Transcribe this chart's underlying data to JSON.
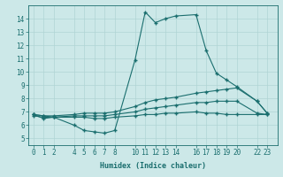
{
  "xlabel": "Humidex (Indice chaleur)",
  "bg_color": "#cce8e8",
  "grid_color": "#b0d4d4",
  "line_color": "#1a6e6e",
  "xtick_positions": [
    0,
    1,
    2,
    4,
    5,
    6,
    7,
    8,
    10,
    11,
    12,
    13,
    14,
    16,
    17,
    18,
    19,
    20,
    22,
    23
  ],
  "xtick_labels": [
    "0",
    "1",
    "2",
    "4",
    "5",
    "6",
    "7",
    "8",
    "10",
    "11",
    "12",
    "13",
    "14",
    "16",
    "17",
    "18",
    "19",
    "20",
    "22",
    "23"
  ],
  "yticks": [
    5,
    6,
    7,
    8,
    9,
    10,
    11,
    12,
    13,
    14
  ],
  "ylim": [
    4.5,
    15.0
  ],
  "xlim": [
    -0.5,
    24.0
  ],
  "line1_x": [
    0,
    1,
    2,
    4,
    5,
    6,
    7,
    8,
    10,
    11,
    12,
    13,
    14,
    16,
    17,
    18,
    19,
    20,
    22,
    23
  ],
  "line1_y": [
    6.8,
    6.5,
    6.6,
    6.0,
    5.6,
    5.5,
    5.4,
    5.6,
    10.9,
    14.5,
    13.7,
    14.0,
    14.2,
    14.3,
    11.6,
    9.9,
    9.4,
    8.9,
    7.8,
    6.9
  ],
  "line2_x": [
    0,
    1,
    2,
    4,
    5,
    6,
    7,
    8,
    10,
    11,
    12,
    13,
    14,
    16,
    17,
    18,
    19,
    20,
    22,
    23
  ],
  "line2_y": [
    6.8,
    6.7,
    6.7,
    6.8,
    6.9,
    6.9,
    6.9,
    7.0,
    7.4,
    7.7,
    7.9,
    8.0,
    8.1,
    8.4,
    8.5,
    8.6,
    8.7,
    8.8,
    7.8,
    6.9
  ],
  "line3_x": [
    0,
    1,
    2,
    4,
    5,
    6,
    7,
    8,
    10,
    11,
    12,
    13,
    14,
    16,
    17,
    18,
    19,
    20,
    22,
    23
  ],
  "line3_y": [
    6.8,
    6.7,
    6.6,
    6.7,
    6.7,
    6.7,
    6.7,
    6.8,
    7.0,
    7.2,
    7.3,
    7.4,
    7.5,
    7.7,
    7.7,
    7.8,
    7.8,
    7.8,
    6.9,
    6.8
  ],
  "line4_x": [
    0,
    1,
    2,
    4,
    5,
    6,
    7,
    8,
    10,
    11,
    12,
    13,
    14,
    16,
    17,
    18,
    19,
    20,
    22,
    23
  ],
  "line4_y": [
    6.7,
    6.6,
    6.6,
    6.6,
    6.6,
    6.5,
    6.5,
    6.6,
    6.7,
    6.8,
    6.8,
    6.9,
    6.9,
    7.0,
    6.9,
    6.9,
    6.8,
    6.8,
    6.8,
    6.8
  ],
  "marker": "+",
  "markersize": 3.0,
  "linewidth": 0.8,
  "label_fontsize": 5.5,
  "xlabel_fontsize": 6.0
}
